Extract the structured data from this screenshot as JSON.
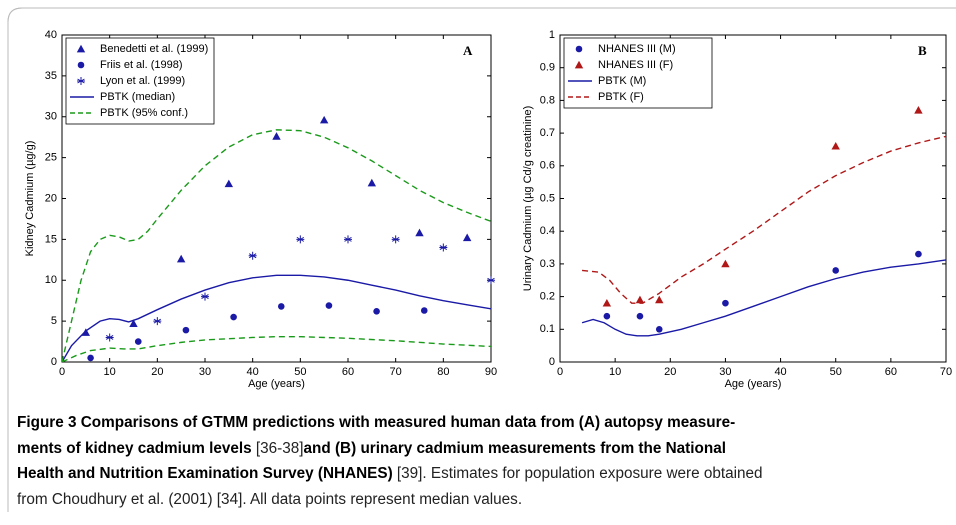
{
  "chart_data": [
    {
      "type": "line",
      "annotation": "A",
      "xlabel": "Age (years)",
      "ylabel": "Kidney Cadmium (µg/g)",
      "xlim": [
        0,
        90
      ],
      "xticks": [
        0,
        10,
        20,
        30,
        40,
        50,
        60,
        70,
        80,
        90
      ],
      "ylim": [
        0,
        40
      ],
      "yticks": [
        0,
        5,
        10,
        15,
        20,
        25,
        30,
        35,
        40
      ],
      "grid": false,
      "legend": "upper left",
      "series": [
        {
          "name": "Benedetti et al. (1999)",
          "color": "#1a1aa6",
          "style": "markers",
          "marker": "triangle",
          "x": [
            5,
            15,
            25,
            35,
            45,
            55,
            65,
            75,
            85
          ],
          "values": [
            3.6,
            4.7,
            12.6,
            21.8,
            27.6,
            29.6,
            21.9,
            15.8,
            15.2
          ]
        },
        {
          "name": "Friis et al. (1998)",
          "color": "#1a1aa6",
          "style": "markers",
          "marker": "circle",
          "x": [
            6,
            16,
            26,
            36,
            46,
            56,
            66,
            76
          ],
          "values": [
            0.5,
            2.5,
            3.9,
            5.5,
            6.8,
            6.9,
            6.2,
            6.3
          ]
        },
        {
          "name": "Lyon et al. (1999)",
          "color": "#1a1aa6",
          "style": "markers",
          "marker": "star",
          "x": [
            10,
            20,
            30,
            40,
            50,
            60,
            70,
            80,
            90
          ],
          "values": [
            3,
            5,
            8,
            13,
            15,
            15,
            15,
            14,
            10
          ]
        },
        {
          "name": "PBTK (median)",
          "color": "#1a1aa6",
          "style": "solid",
          "x": [
            0,
            2,
            5,
            8,
            10,
            12,
            14,
            16,
            20,
            25,
            30,
            35,
            40,
            45,
            50,
            55,
            60,
            65,
            70,
            75,
            80,
            85,
            90
          ],
          "values": [
            0,
            2,
            3.8,
            5,
            5.3,
            5.2,
            4.9,
            5.3,
            6.4,
            7.7,
            8.8,
            9.7,
            10.3,
            10.6,
            10.6,
            10.4,
            10,
            9.4,
            8.8,
            8.1,
            7.5,
            7,
            6.5
          ]
        },
        {
          "name": "PBTK (95% conf.)",
          "color": "#1a9a1a",
          "style": "dashed",
          "x": [
            0,
            2,
            4,
            6,
            8,
            10,
            12,
            14,
            16,
            18,
            20,
            25,
            30,
            35,
            40,
            45,
            50,
            55,
            60,
            65,
            70,
            75,
            80,
            85,
            90
          ],
          "values": [
            0,
            5,
            10,
            13.5,
            15,
            15.5,
            15.3,
            14.8,
            15,
            16,
            17.5,
            21,
            24,
            26.3,
            27.8,
            28.4,
            28.3,
            27.5,
            26.2,
            24.6,
            22.8,
            21,
            19.5,
            18.3,
            17.2
          ]
        },
        {
          "color": "#1a9a1a",
          "style": "dashed",
          "x": [
            0,
            3,
            6,
            10,
            13,
            16,
            20,
            25,
            30,
            40,
            45,
            50,
            60,
            70,
            80,
            90
          ],
          "values": [
            0,
            0.8,
            1.4,
            1.7,
            1.6,
            1.6,
            2,
            2.4,
            2.7,
            3,
            3.1,
            3.1,
            2.9,
            2.6,
            2.2,
            1.9
          ]
        }
      ]
    },
    {
      "type": "line",
      "annotation": "B",
      "xlabel": "Age (years)",
      "ylabel": "Urinary Cadmium (µg Cd/g creatinine)",
      "xlim": [
        0,
        70
      ],
      "xticks": [
        0,
        10,
        20,
        30,
        40,
        50,
        60,
        70
      ],
      "ylim": [
        0,
        1
      ],
      "yticks": [
        0,
        0.1,
        0.2,
        0.3,
        0.4,
        0.5,
        0.6,
        0.7,
        0.8,
        0.9,
        1
      ],
      "grid": false,
      "legend": "upper left",
      "series": [
        {
          "name": "NHANES III (M)",
          "color": "#1a1aa6",
          "style": "markers",
          "marker": "circle",
          "x": [
            8.5,
            14.5,
            18,
            30,
            50,
            65
          ],
          "values": [
            0.14,
            0.14,
            0.1,
            0.18,
            0.28,
            0.33
          ]
        },
        {
          "name": "NHANES III (F)",
          "color": "#b01818",
          "style": "markers",
          "marker": "triangle",
          "x": [
            8.5,
            14.5,
            18,
            30,
            50,
            65
          ],
          "values": [
            0.18,
            0.19,
            0.19,
            0.3,
            0.66,
            0.77
          ]
        },
        {
          "name": "PBTK (M)",
          "color": "#1a1aa6",
          "style": "solid",
          "x": [
            4,
            6,
            8,
            10,
            12,
            14,
            16,
            18,
            22,
            26,
            30,
            35,
            40,
            45,
            50,
            55,
            60,
            65,
            70
          ],
          "values": [
            0.12,
            0.13,
            0.12,
            0.1,
            0.085,
            0.08,
            0.08,
            0.085,
            0.1,
            0.12,
            0.14,
            0.17,
            0.2,
            0.23,
            0.255,
            0.275,
            0.29,
            0.3,
            0.312
          ]
        },
        {
          "name": "PBTK (F)",
          "color": "#b01818",
          "style": "dashed",
          "x": [
            4,
            7,
            9,
            11,
            13,
            15,
            18,
            22,
            26,
            30,
            35,
            40,
            45,
            50,
            55,
            60,
            65,
            70
          ],
          "values": [
            0.28,
            0.275,
            0.25,
            0.21,
            0.18,
            0.18,
            0.21,
            0.26,
            0.3,
            0.345,
            0.4,
            0.46,
            0.52,
            0.57,
            0.61,
            0.645,
            0.67,
            0.69
          ]
        }
      ]
    }
  ],
  "caption": {
    "lines": [
      [
        {
          "text": "Figure 3 Comparisons of GTMM predictions with measured human data from (A) autopsy measure-",
          "bold": true
        }
      ],
      [
        {
          "text": "ments of kidney cadmium levels",
          "bold": true
        },
        {
          "text": " [36-38]",
          "bold": false
        },
        {
          "text": "and (B) urinary cadmium measurements from the National",
          "bold": true
        }
      ],
      [
        {
          "text": "Health and Nutrition Examination Survey (NHANES)",
          "bold": true
        },
        {
          "text": " [39]. Estimates for population exposure were obtained",
          "bold": false
        }
      ],
      [
        {
          "text": "from Choudhury et al. (2001) [34]. All data points represent median values.",
          "bold": false
        }
      ]
    ]
  }
}
